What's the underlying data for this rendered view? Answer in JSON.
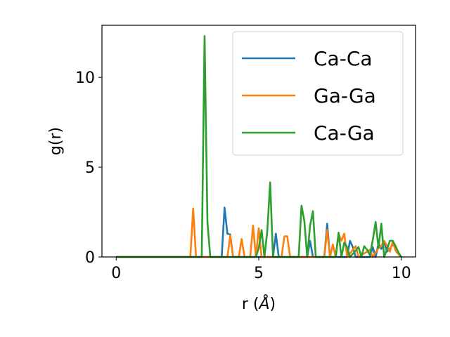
{
  "chart_data": {
    "type": "line",
    "title": "",
    "xlabel": "r",
    "xlabel_unit": "Å",
    "ylabel": "g(r)",
    "xlim": [
      -0.5,
      10.5
    ],
    "ylim": [
      0,
      12.9
    ],
    "xticks": [
      0,
      5,
      10
    ],
    "yticks": [
      0,
      5,
      10
    ],
    "grid": false,
    "legend_position": "top-right",
    "series": [
      {
        "name": "Ca-Ca",
        "color": "#1f77b4",
        "points": [
          [
            0,
            0
          ],
          [
            3.7,
            0
          ],
          [
            3.8,
            2.75
          ],
          [
            3.9,
            1.3
          ],
          [
            4.0,
            1.25
          ],
          [
            4.1,
            0
          ],
          [
            5.5,
            0
          ],
          [
            5.6,
            1.3
          ],
          [
            5.7,
            0
          ],
          [
            6.7,
            0
          ],
          [
            6.8,
            0.9
          ],
          [
            6.9,
            0
          ],
          [
            7.3,
            0
          ],
          [
            7.4,
            1.85
          ],
          [
            7.5,
            0
          ],
          [
            8.1,
            0
          ],
          [
            8.2,
            0.9
          ],
          [
            8.3,
            0.55
          ],
          [
            8.4,
            0
          ],
          [
            8.9,
            0
          ],
          [
            9.0,
            0.55
          ],
          [
            9.1,
            0
          ],
          [
            9.2,
            0.75
          ],
          [
            9.3,
            0.45
          ],
          [
            9.4,
            0.85
          ],
          [
            9.5,
            0.3
          ],
          [
            9.6,
            0.45
          ],
          [
            9.7,
            0.7
          ],
          [
            9.8,
            0.55
          ],
          [
            9.9,
            0.2
          ],
          [
            10.0,
            0
          ]
        ]
      },
      {
        "name": "Ga-Ga",
        "color": "#ff7f0e",
        "points": [
          [
            0,
            0
          ],
          [
            2.6,
            0
          ],
          [
            2.7,
            2.7
          ],
          [
            2.8,
            0
          ],
          [
            3.9,
            0
          ],
          [
            4.0,
            1.2
          ],
          [
            4.1,
            0
          ],
          [
            4.3,
            0
          ],
          [
            4.4,
            1.0
          ],
          [
            4.5,
            0
          ],
          [
            4.7,
            0
          ],
          [
            4.8,
            1.75
          ],
          [
            4.9,
            0
          ],
          [
            5.0,
            1.6
          ],
          [
            5.1,
            0
          ],
          [
            5.8,
            0
          ],
          [
            5.9,
            1.15
          ],
          [
            6.0,
            1.15
          ],
          [
            6.1,
            0
          ],
          [
            7.3,
            0
          ],
          [
            7.4,
            1.5
          ],
          [
            7.5,
            0
          ],
          [
            7.6,
            0.7
          ],
          [
            7.7,
            0
          ],
          [
            7.8,
            1.3
          ],
          [
            7.9,
            0.9
          ],
          [
            8.0,
            1.3
          ],
          [
            8.1,
            0
          ],
          [
            8.4,
            0.6
          ],
          [
            8.5,
            0
          ],
          [
            8.9,
            0.4
          ],
          [
            9.0,
            0
          ],
          [
            9.2,
            0.5
          ],
          [
            9.3,
            0.6
          ],
          [
            9.4,
            0.9
          ],
          [
            9.5,
            0.6
          ],
          [
            9.6,
            0.3
          ],
          [
            9.7,
            0.85
          ],
          [
            9.8,
            0.35
          ],
          [
            9.9,
            0.15
          ],
          [
            10.0,
            0
          ]
        ]
      },
      {
        "name": "Ca-Ga",
        "color": "#2ca02c",
        "points": [
          [
            0,
            0
          ],
          [
            3.0,
            0
          ],
          [
            3.1,
            12.3
          ],
          [
            3.2,
            1.95
          ],
          [
            3.3,
            0
          ],
          [
            4.9,
            0
          ],
          [
            5.0,
            0.5
          ],
          [
            5.1,
            1.5
          ],
          [
            5.2,
            0
          ],
          [
            5.3,
            1.45
          ],
          [
            5.4,
            4.15
          ],
          [
            5.5,
            0
          ],
          [
            6.4,
            0
          ],
          [
            6.5,
            2.85
          ],
          [
            6.6,
            2.0
          ],
          [
            6.7,
            0
          ],
          [
            6.8,
            1.75
          ],
          [
            6.9,
            2.55
          ],
          [
            7.0,
            0
          ],
          [
            7.7,
            0
          ],
          [
            7.8,
            1.35
          ],
          [
            7.9,
            0
          ],
          [
            8.0,
            0.8
          ],
          [
            8.1,
            0.55
          ],
          [
            8.2,
            0
          ],
          [
            8.4,
            0.35
          ],
          [
            8.5,
            0.55
          ],
          [
            8.6,
            0
          ],
          [
            8.7,
            0.6
          ],
          [
            8.8,
            0.4
          ],
          [
            8.9,
            0.1
          ],
          [
            9.0,
            0.95
          ],
          [
            9.1,
            1.95
          ],
          [
            9.2,
            0.5
          ],
          [
            9.3,
            1.85
          ],
          [
            9.4,
            0
          ],
          [
            9.5,
            0.45
          ],
          [
            9.6,
            0.9
          ],
          [
            9.7,
            0.9
          ],
          [
            9.8,
            0.6
          ],
          [
            9.9,
            0.25
          ],
          [
            10.0,
            0
          ]
        ]
      }
    ]
  }
}
